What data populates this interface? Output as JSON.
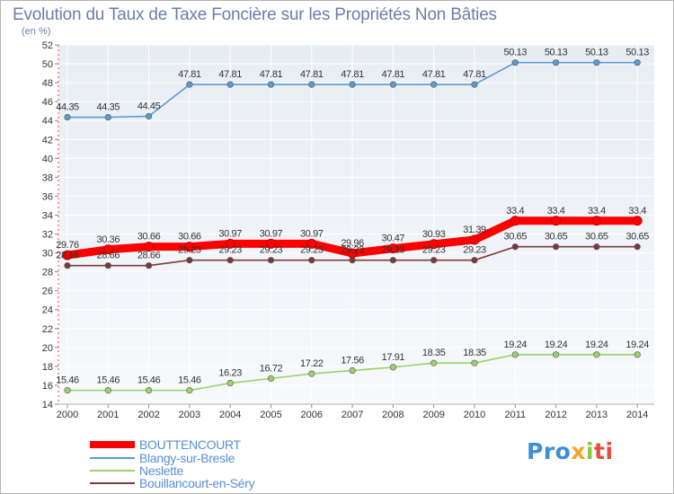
{
  "header": {
    "title": "Evolution du Taux de Taxe Foncière sur les Propriétés Non Bâties",
    "unit": "(en %)"
  },
  "logo": {
    "part1": "Pro",
    "part2": "x",
    "part3": "i",
    "part4": "ti"
  },
  "chart_data": {
    "type": "line",
    "title": "Evolution du Taux de Taxe Foncière sur les Propriétés Non Bâties",
    "ylabel": "(en %)",
    "xlabel": "",
    "categories": [
      "2000",
      "2001",
      "2002",
      "2003",
      "2004",
      "2005",
      "2006",
      "2007",
      "2008",
      "2009",
      "2010",
      "2011",
      "2012",
      "2013",
      "2014"
    ],
    "ylim": [
      14,
      52
    ],
    "yticks": [
      14,
      16,
      18,
      20,
      22,
      24,
      26,
      28,
      30,
      32,
      34,
      36,
      38,
      40,
      42,
      44,
      46,
      48,
      50,
      52
    ],
    "grid": true,
    "legend_position": "bottom-left",
    "series": [
      {
        "name": "BOUTTENCOURT",
        "color": "#ff0000",
        "emphasis": "thick",
        "values": [
          29.76,
          30.36,
          30.66,
          30.66,
          30.97,
          30.97,
          30.97,
          29.96,
          30.47,
          30.93,
          31.39,
          33.4,
          33.4,
          33.4,
          33.4
        ],
        "labels": [
          "29.76",
          "30.36",
          "30.66",
          "30.66",
          "30.97",
          "30.97",
          "30.97",
          "29.96",
          "30.47",
          "30.93",
          "31.39",
          "33.4",
          "33.4",
          "33.4",
          "33.4"
        ]
      },
      {
        "name": "Blangy-sur-Bresle",
        "color": "#5b9bd0",
        "values": [
          44.35,
          44.35,
          44.45,
          47.81,
          47.81,
          47.81,
          47.81,
          47.81,
          47.81,
          47.81,
          47.81,
          50.13,
          50.13,
          50.13,
          50.13
        ],
        "labels": [
          "44.35",
          "44.35",
          "44.45",
          "47.81",
          "47.81",
          "47.81",
          "47.81",
          "47.81",
          "47.81",
          "47.81",
          "47.81",
          "50.13",
          "50.13",
          "50.13",
          "50.13"
        ]
      },
      {
        "name": "Neslette",
        "color": "#99d36b",
        "values": [
          15.46,
          15.46,
          15.46,
          15.46,
          16.23,
          16.72,
          17.22,
          17.56,
          17.91,
          18.35,
          18.35,
          19.24,
          19.24,
          19.24,
          19.24
        ],
        "labels": [
          "15.46",
          "15.46",
          "15.46",
          "15.46",
          "16.23",
          "16.72",
          "17.22",
          "17.56",
          "17.91",
          "18.35",
          "18.35",
          "19.24",
          "19.24",
          "19.24",
          "19.24"
        ]
      },
      {
        "name": "Bouillancourt-en-Séry",
        "color": "#7a3b3b",
        "values": [
          28.66,
          28.66,
          28.66,
          29.23,
          29.23,
          29.23,
          29.23,
          29.23,
          29.23,
          29.23,
          29.23,
          30.65,
          30.65,
          30.65,
          30.65
        ],
        "labels": [
          "28.66",
          "28.66",
          "28.66",
          "29.23",
          "29.23",
          "29.23",
          "29.23",
          "29.23",
          "29.23",
          "29.23",
          "29.23",
          "30.65",
          "30.65",
          "30.65",
          "30.65"
        ]
      }
    ]
  }
}
